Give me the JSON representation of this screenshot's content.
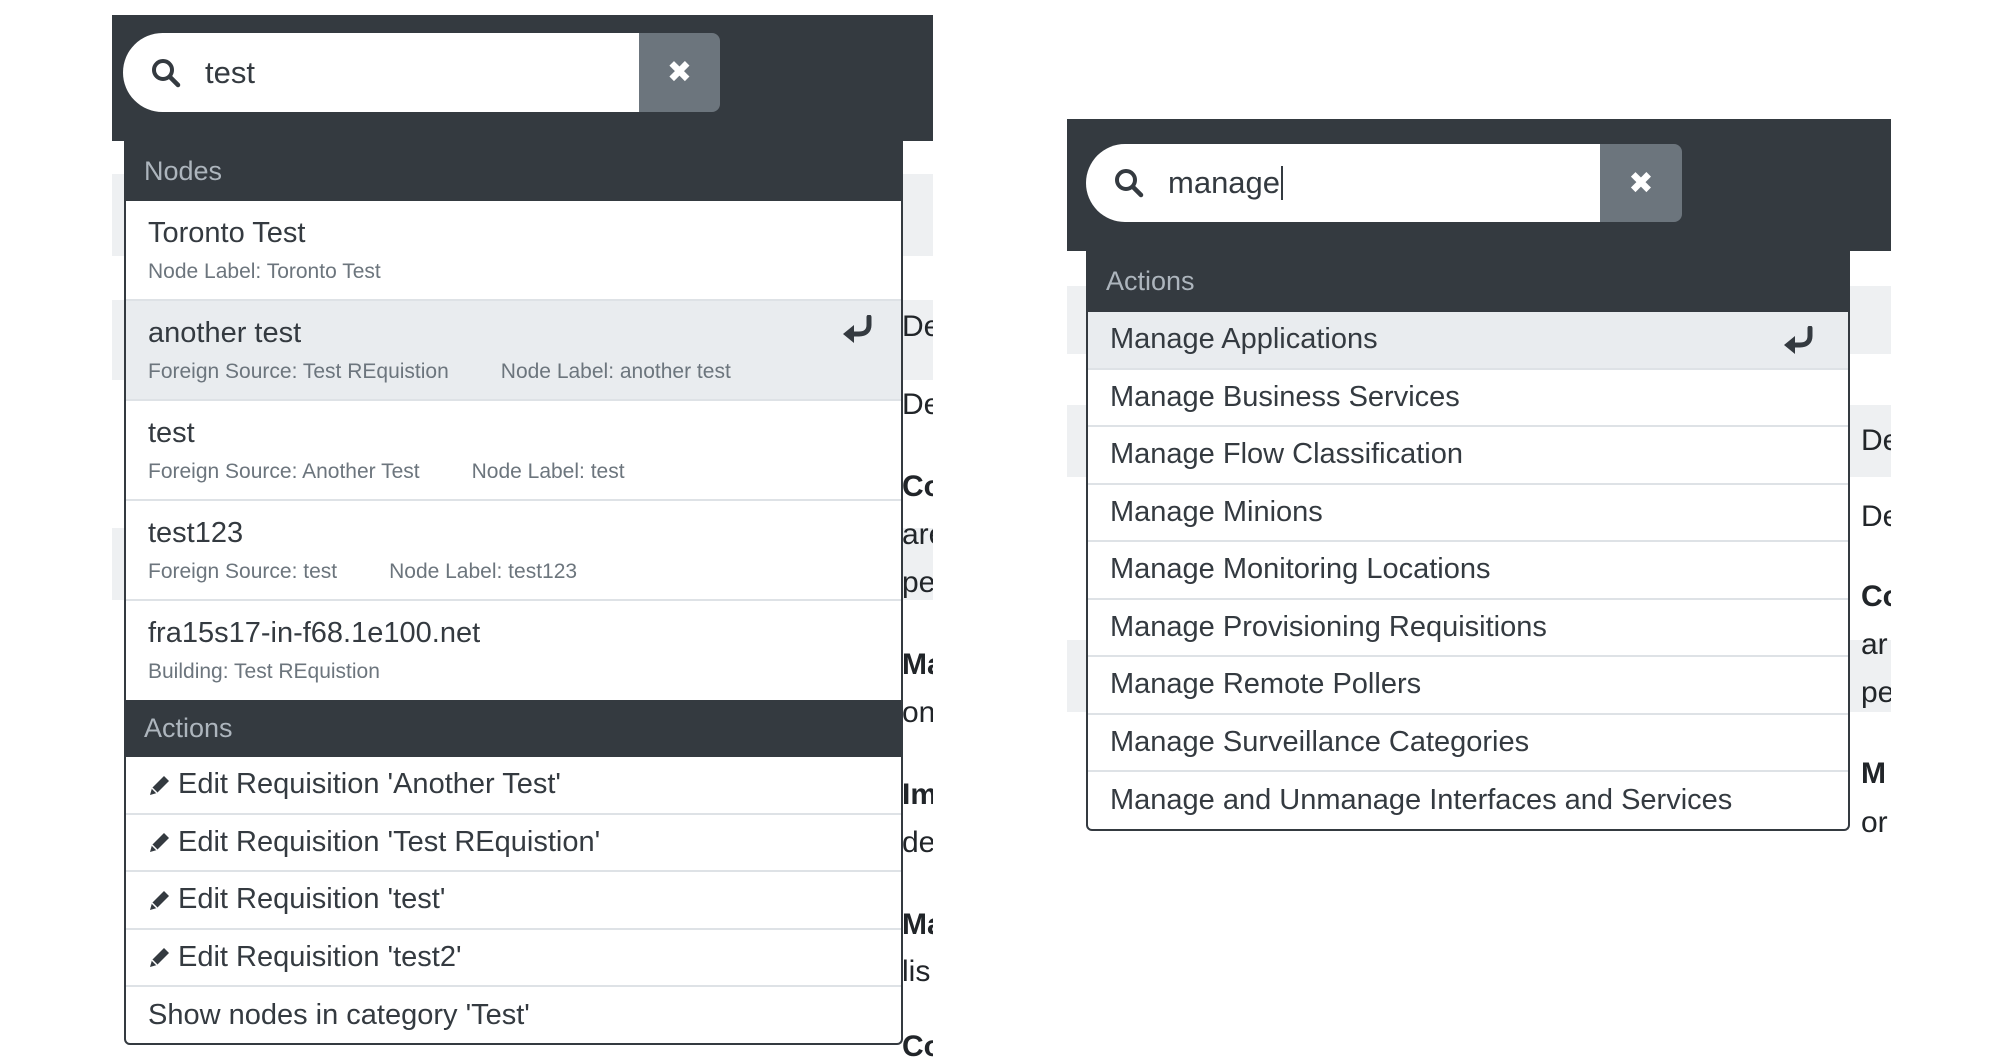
{
  "left": {
    "search": {
      "value": "test",
      "icon": "search-icon",
      "clear_icon": "close-icon"
    },
    "nodes_header": "Nodes",
    "nodes": [
      {
        "title": "Toronto Test",
        "meta": [
          "Node Label: Toronto Test"
        ]
      },
      {
        "title": "another test",
        "meta": [
          "Foreign Source: Test REquistion",
          "Node Label: another test"
        ],
        "active": true
      },
      {
        "title": "test",
        "meta": [
          "Foreign Source: Another Test",
          "Node Label: test"
        ]
      },
      {
        "title": "test123",
        "meta": [
          "Foreign Source: test",
          "Node Label: test123"
        ]
      },
      {
        "title": "fra15s17-in-f68.1e100.net",
        "meta": [
          "Building: Test REquistion"
        ]
      }
    ],
    "actions_header": "Actions",
    "actions": [
      {
        "label": "Edit Requisition 'Another Test'",
        "icon": "pencil-icon"
      },
      {
        "label": "Edit Requisition 'Test REquistion'",
        "icon": "pencil-icon"
      },
      {
        "label": "Edit Requisition 'test'",
        "icon": "pencil-icon"
      },
      {
        "label": "Edit Requisition 'test2'",
        "icon": "pencil-icon"
      },
      {
        "label": "Show nodes in category 'Test'"
      }
    ],
    "background_fragments": [
      "De",
      "De",
      "Co",
      "are",
      "pe",
      "Ma",
      "on",
      "Im",
      "de",
      "Ma",
      "lis",
      "Co"
    ]
  },
  "right": {
    "search": {
      "value": "manage",
      "icon": "search-icon",
      "clear_icon": "close-icon"
    },
    "actions_header": "Actions",
    "actions": [
      {
        "label": "Manage Applications",
        "active": true
      },
      {
        "label": "Manage Business Services"
      },
      {
        "label": "Manage Flow Classification"
      },
      {
        "label": "Manage Minions"
      },
      {
        "label": "Manage Monitoring Locations"
      },
      {
        "label": "Manage Provisioning Requisitions"
      },
      {
        "label": "Manage Remote Pollers"
      },
      {
        "label": "Manage Surveillance Categories"
      },
      {
        "label": "Manage and Unmanage Interfaces and Services"
      }
    ],
    "background_fragments": [
      "De",
      "De",
      "Co",
      "ar",
      "pe",
      "M",
      "or"
    ]
  },
  "colors": {
    "navbar": "#343a40",
    "clear_button": "#6c757d",
    "active_row": "#e9ecef",
    "divider": "#dee2e6"
  }
}
